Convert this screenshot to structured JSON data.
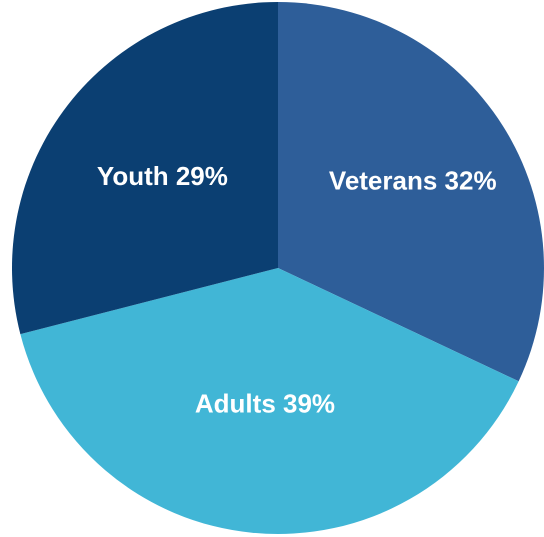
{
  "chart_data": {
    "type": "pie",
    "title": "",
    "slices": [
      {
        "label": "Veterans",
        "value": 32,
        "display": "Veterans 32%",
        "color": "#2e5e99"
      },
      {
        "label": "Adults",
        "value": 39,
        "display": "Adults 39%",
        "color": "#41b6d6"
      },
      {
        "label": "Youth",
        "value": 29,
        "display": "Youth 29%",
        "color": "#0b3f72"
      }
    ],
    "start_angle_deg": 0,
    "direction": "clockwise",
    "legend": "none",
    "labels_inside": true
  }
}
